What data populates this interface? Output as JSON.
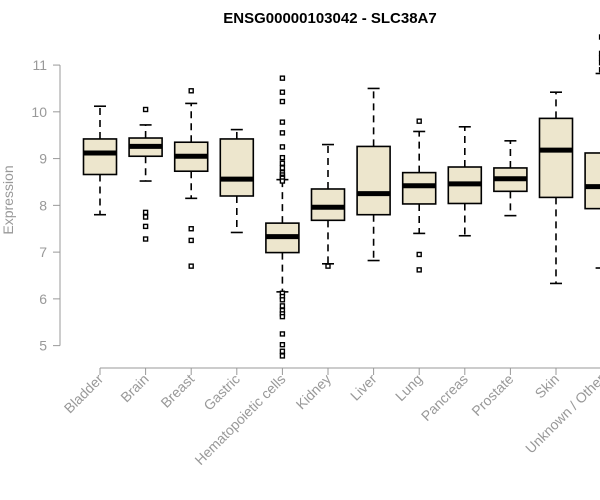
{
  "chart_data": {
    "type": "boxplot",
    "title": "ENSG00000103042 - SLC38A7",
    "xlabel": "",
    "ylabel": "Expression",
    "ylim": [
      4.65,
      11.75
    ],
    "yticks": [
      5,
      6,
      7,
      8,
      9,
      10,
      11
    ],
    "categories": [
      "Bladder",
      "Brain",
      "Breast",
      "Gastric",
      "Hematopoietic cells",
      "Kidney",
      "Liver",
      "Lung",
      "Pancreas",
      "Prostate",
      "Skin",
      "Unknown / Other"
    ],
    "boxes": [
      {
        "category": "Bladder",
        "whisker_low": 7.8,
        "q1": 8.66,
        "median": 9.12,
        "q3": 9.42,
        "whisker_high": 10.12,
        "outliers": []
      },
      {
        "category": "Brain",
        "whisker_low": 8.52,
        "q1": 9.05,
        "median": 9.26,
        "q3": 9.44,
        "whisker_high": 9.72,
        "outliers": [
          10.05,
          7.85,
          7.75,
          7.55,
          7.28
        ]
      },
      {
        "category": "Breast",
        "whisker_low": 8.15,
        "q1": 8.73,
        "median": 9.05,
        "q3": 9.35,
        "whisker_high": 10.18,
        "outliers": [
          10.45,
          7.5,
          7.25,
          6.7
        ]
      },
      {
        "category": "Gastric",
        "whisker_low": 7.42,
        "q1": 8.2,
        "median": 8.56,
        "q3": 9.42,
        "whisker_high": 9.62,
        "outliers": []
      },
      {
        "category": "Hematopoietic cells",
        "whisker_low": 6.15,
        "q1": 6.99,
        "median": 7.33,
        "q3": 7.62,
        "whisker_high": 8.55,
        "outliers": [
          10.72,
          10.42,
          10.22,
          9.78,
          9.55,
          9.25,
          9.02,
          8.9,
          8.8,
          8.7,
          8.65,
          8.6,
          8.58,
          8.52,
          6.12,
          6.05,
          5.98,
          5.85,
          5.75,
          5.68,
          5.62,
          5.25,
          5.02,
          4.88,
          4.78
        ]
      },
      {
        "category": "Kidney",
        "whisker_low": 6.75,
        "q1": 7.68,
        "median": 7.96,
        "q3": 8.35,
        "whisker_high": 9.3,
        "outliers": [
          6.7
        ]
      },
      {
        "category": "Liver",
        "whisker_low": 6.82,
        "q1": 7.8,
        "median": 8.25,
        "q3": 9.26,
        "whisker_high": 10.5,
        "outliers": []
      },
      {
        "category": "Lung",
        "whisker_low": 7.4,
        "q1": 8.03,
        "median": 8.42,
        "q3": 8.7,
        "whisker_high": 9.58,
        "outliers": [
          9.8,
          6.95,
          6.62
        ]
      },
      {
        "category": "Pancreas",
        "whisker_low": 7.35,
        "q1": 8.04,
        "median": 8.46,
        "q3": 8.82,
        "whisker_high": 9.68,
        "outliers": []
      },
      {
        "category": "Prostate",
        "whisker_low": 7.78,
        "q1": 8.3,
        "median": 8.57,
        "q3": 8.8,
        "whisker_high": 9.38,
        "outliers": []
      },
      {
        "category": "Skin",
        "whisker_low": 6.33,
        "q1": 8.17,
        "median": 9.18,
        "q3": 9.86,
        "whisker_high": 10.42,
        "outliers": []
      },
      {
        "category": "Unknown / Other",
        "whisker_low": 6.66,
        "q1": 7.93,
        "median": 8.4,
        "q3": 9.12,
        "whisker_high": 10.82,
        "outliers": [
          11.6,
          11.25,
          11.15,
          11.05,
          10.9
        ]
      }
    ],
    "colors": {
      "box_fill": "#ede6cd",
      "box_stroke": "#000000",
      "median": "#000000",
      "axis": "#999999",
      "title": "#000000"
    }
  }
}
